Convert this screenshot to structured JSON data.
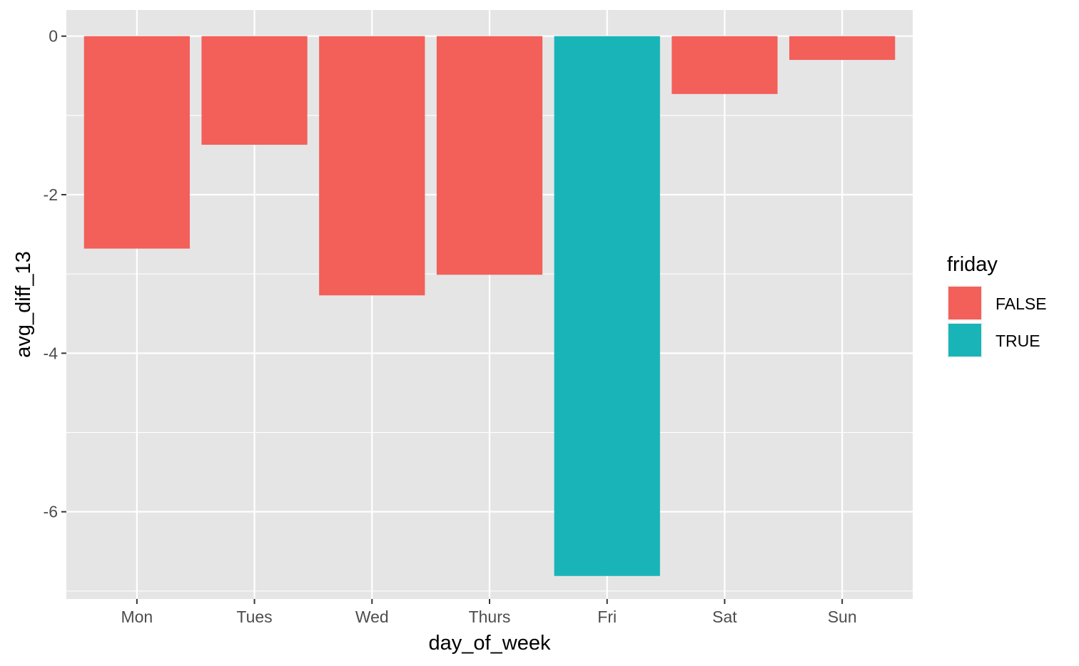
{
  "chart_data": {
    "type": "bar",
    "title": "",
    "xlabel": "day_of_week",
    "ylabel": "avg_diff_13",
    "categories": [
      "Mon",
      "Tues",
      "Wed",
      "Thurs",
      "Fri",
      "Sat",
      "Sun"
    ],
    "values": [
      -2.68,
      -1.37,
      -3.27,
      -3.01,
      -6.81,
      -0.73,
      -0.3
    ],
    "fill_group": [
      "FALSE",
      "FALSE",
      "FALSE",
      "FALSE",
      "TRUE",
      "FALSE",
      "FALSE"
    ],
    "ylim": [
      -7.1,
      0.33
    ],
    "y_ticks": [
      0,
      -2,
      -4,
      -6
    ],
    "y_tick_labels": [
      "0",
      "-2",
      "-4",
      "-6"
    ],
    "grid": true,
    "legend": {
      "title": "friday",
      "placement": "right",
      "entries": [
        {
          "label": "FALSE",
          "color": "#F8766D"
        },
        {
          "label": "TRUE",
          "color": "#00BFC4"
        }
      ]
    },
    "colors": {
      "FALSE": "#F35F59",
      "TRUE": "#19B4B8",
      "panel_background": "#E5E5E5",
      "grid": "#FFFFFF"
    }
  }
}
